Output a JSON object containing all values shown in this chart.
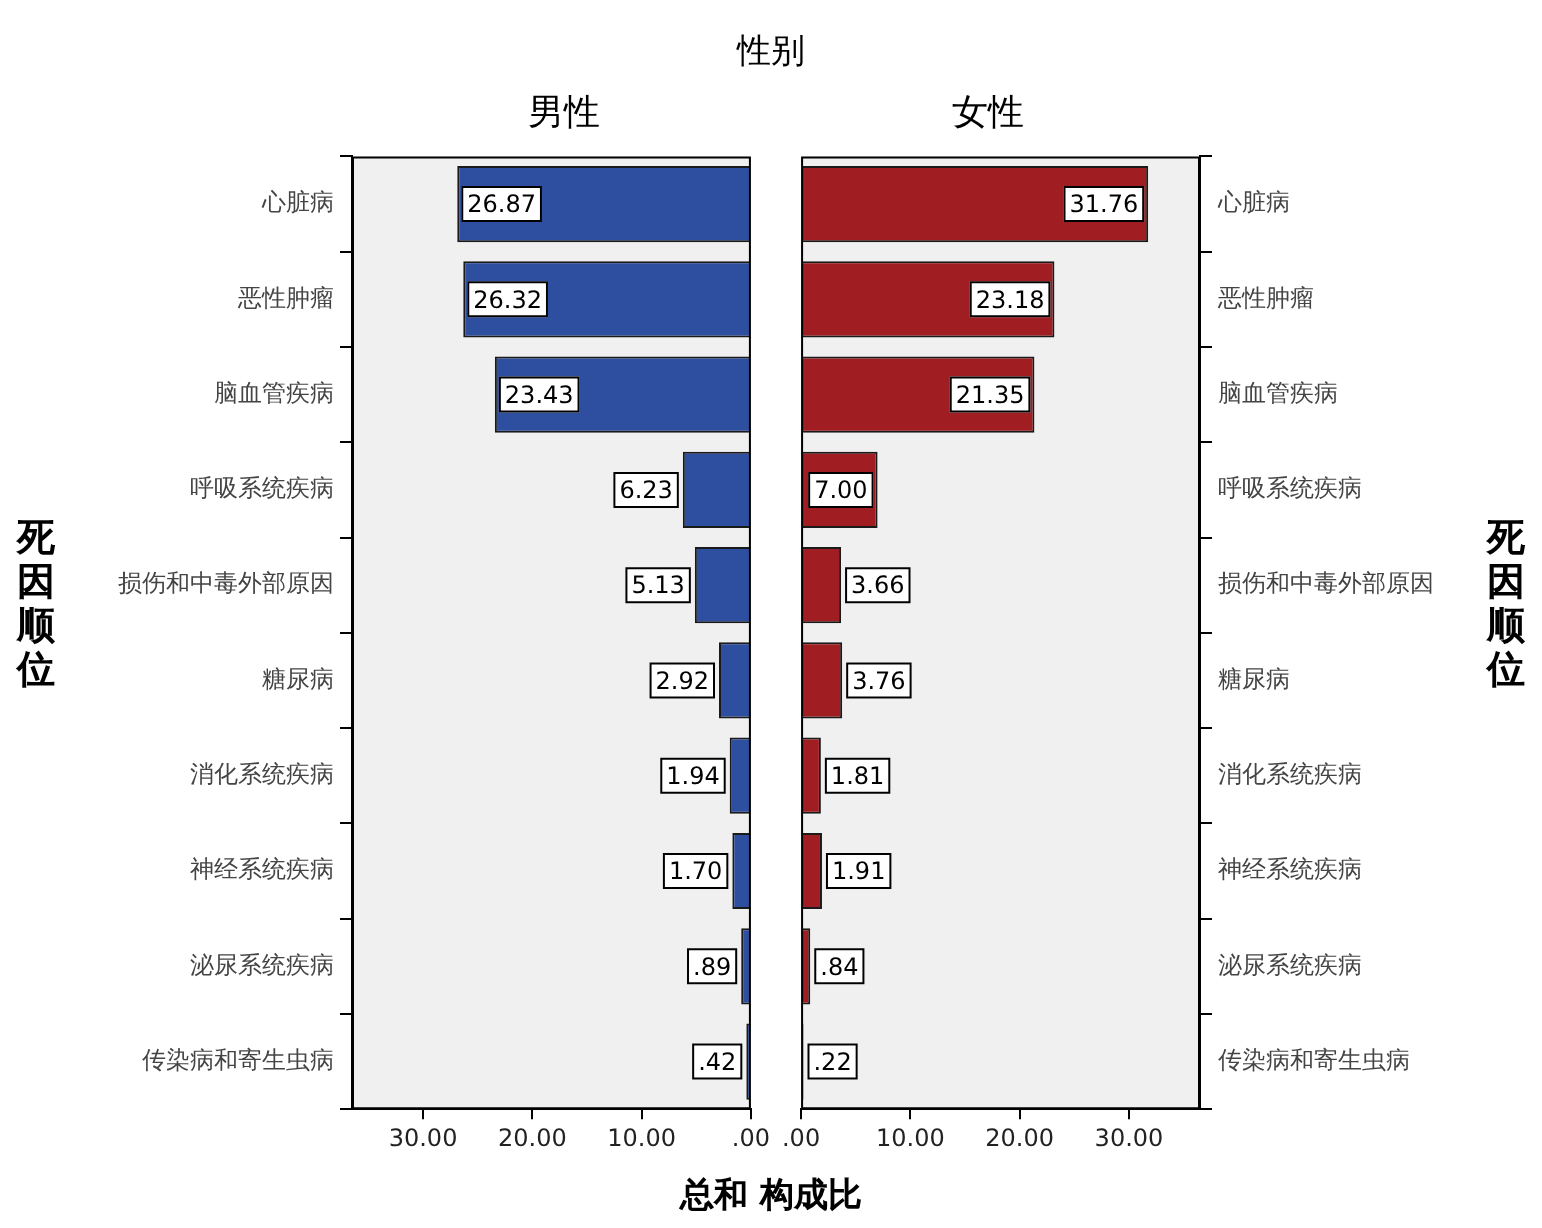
{
  "chart_data": [
    {
      "type": "bar",
      "orientation": "horizontal",
      "title": "性别",
      "subtitle": "男性",
      "xlabel": "总和 构成比",
      "ylabel": "死因顺位",
      "categories": [
        "心脏病",
        "恶性肿瘤",
        "脑血管疾病",
        "呼吸系统疾病",
        "损伤和中毒外部原因",
        "糖尿病",
        "消化系统疾病",
        "神经系统疾病",
        "泌尿系统疾病",
        "传染病和寄生虫病"
      ],
      "values": [
        26.87,
        26.32,
        23.43,
        6.23,
        5.13,
        2.92,
        1.94,
        1.7,
        0.89,
        0.42
      ],
      "value_labels": [
        "26.87",
        "26.32",
        "23.43",
        "6.23",
        "5.13",
        "2.92",
        "1.94",
        "1.70",
        ".89",
        ".42"
      ],
      "color": "#2e4f9f",
      "xlim": [
        36.5,
        0
      ],
      "xticks": [
        {
          "value": 30,
          "label": "30.00"
        },
        {
          "value": 20,
          "label": "20.00"
        },
        {
          "value": 10,
          "label": "10.00"
        },
        {
          "value": 0,
          "label": ".00"
        }
      ]
    },
    {
      "type": "bar",
      "orientation": "horizontal",
      "subtitle": "女性",
      "ylabel": "死因顺位",
      "categories": [
        "心脏病",
        "恶性肿瘤",
        "脑血管疾病",
        "呼吸系统疾病",
        "损伤和中毒外部原因",
        "糖尿病",
        "消化系统疾病",
        "神经系统疾病",
        "泌尿系统疾病",
        "传染病和寄生虫病"
      ],
      "values": [
        31.76,
        23.18,
        21.35,
        7.0,
        3.66,
        3.76,
        1.81,
        1.91,
        0.84,
        0.22
      ],
      "value_labels": [
        "31.76",
        "23.18",
        "21.35",
        "7.00",
        "3.66",
        "3.76",
        "1.81",
        "1.91",
        ".84",
        ".22"
      ],
      "color": "#a01d22",
      "xlim": [
        0,
        36.5
      ],
      "xticks": [
        {
          "value": 0,
          "label": ".00"
        },
        {
          "value": 10,
          "label": "10.00"
        },
        {
          "value": 20,
          "label": "20.00"
        },
        {
          "value": 30,
          "label": "30.00"
        }
      ]
    }
  ]
}
